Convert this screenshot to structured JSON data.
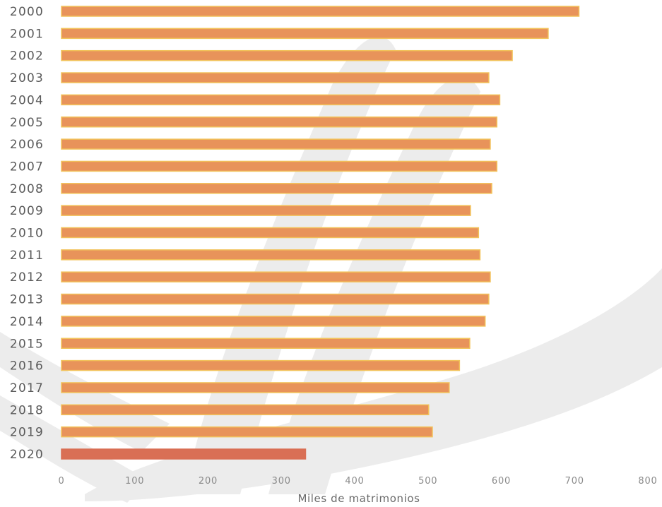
{
  "chart_data": {
    "type": "bar",
    "orientation": "horizontal",
    "categories": [
      "2000",
      "2001",
      "2002",
      "2003",
      "2004",
      "2005",
      "2006",
      "2007",
      "2008",
      "2009",
      "2010",
      "2011",
      "2012",
      "2013",
      "2014",
      "2015",
      "2016",
      "2017",
      "2018",
      "2019",
      "2020"
    ],
    "values": [
      706,
      664,
      615,
      583,
      598,
      594,
      585,
      594,
      587,
      558,
      569,
      571,
      585,
      583,
      578,
      557,
      543,
      529,
      501,
      506,
      333
    ],
    "xlabel": "Miles de matrimonios",
    "ylabel": "",
    "title": "",
    "xlim": [
      0,
      800
    ],
    "xticks": [
      "0",
      "100",
      "200",
      "300",
      "400",
      "500",
      "600",
      "700",
      "800"
    ],
    "grid": false,
    "colors": {
      "bar": "#e8935a",
      "bar_edge": "#f2c25a",
      "highlight_bar": "#d96f55",
      "highlight_category": "2020"
    }
  }
}
